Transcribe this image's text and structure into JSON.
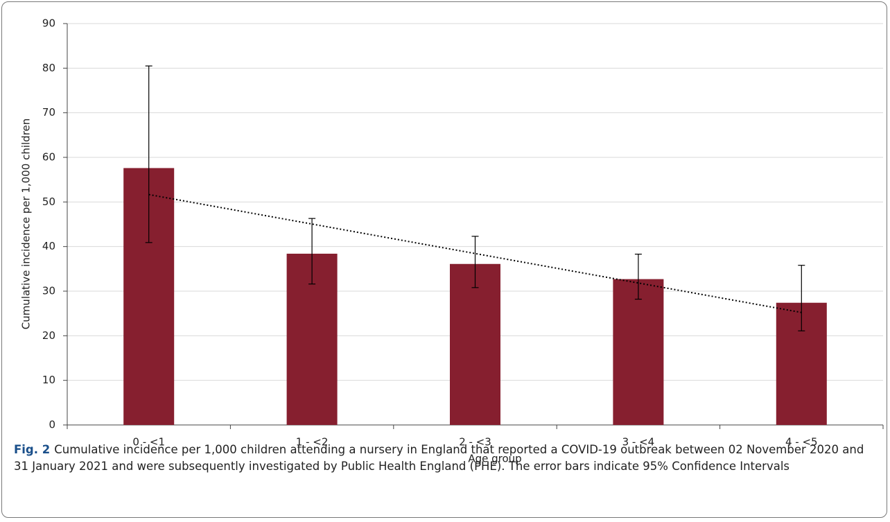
{
  "chart_data": {
    "type": "bar",
    "x_label": "Age group",
    "y_label": "Cumulative incidence per 1,000 children",
    "categories": [
      "0 - <1",
      "1 - <2",
      "2 - <3",
      "3 - <4",
      "4 - <5"
    ],
    "values": [
      57.6,
      38.4,
      36.1,
      32.7,
      27.4
    ],
    "ci_low": [
      40.9,
      31.6,
      30.8,
      28.2,
      21.1
    ],
    "ci_high": [
      80.5,
      46.3,
      42.3,
      38.3,
      35.8
    ],
    "color": "#861f2f",
    "ylim": [
      0,
      90
    ],
    "yticks": [
      0,
      10,
      20,
      30,
      40,
      50,
      60,
      70,
      80,
      90
    ],
    "grid": true,
    "trendline": "linear"
  },
  "caption": {
    "label": "Fig. 2",
    "text": "Cumulative incidence per 1,000 children attending a nursery in England that reported a COVID-19 outbreak between 02 November 2020 and 31 January 2021 and were subsequently investigated by Public Health England (PHE). The error bars indicate 95% Confidence Intervals"
  }
}
